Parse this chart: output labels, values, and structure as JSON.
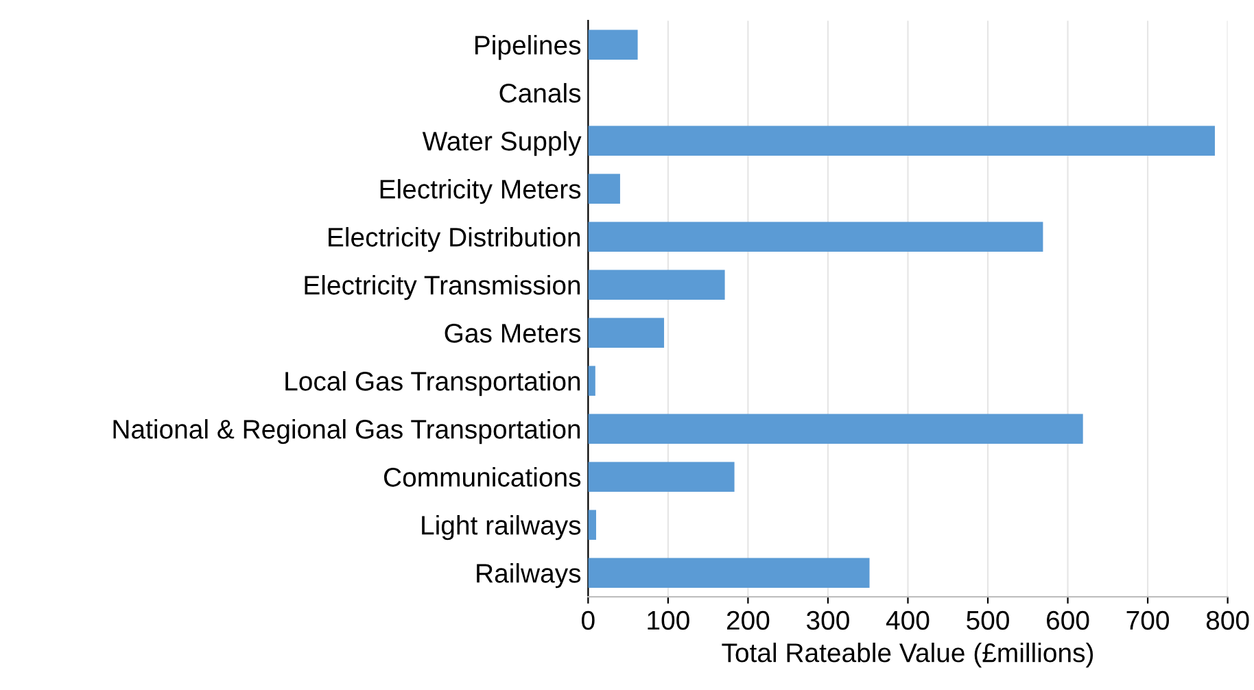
{
  "chart_data": {
    "type": "bar",
    "orientation": "horizontal",
    "xlabel": "Total Rateable Value (£millions)",
    "categories": [
      "Pipelines",
      "Canals",
      "Water Supply",
      "Electricity Meters",
      "Electricity Distribution",
      "Electricity Transmission",
      "Gas Meters",
      "Local Gas Transportation",
      "National & Regional Gas Transportation",
      "Communications",
      "Light railways",
      "Railways"
    ],
    "values": [
      62,
      0,
      784,
      40,
      569,
      171,
      95,
      9,
      619,
      183,
      10,
      352
    ],
    "color": "#5b9bd5",
    "xlim": [
      0,
      800
    ],
    "xticks": [
      0,
      100,
      200,
      300,
      400,
      500,
      600,
      700,
      800
    ],
    "grid": "x"
  }
}
